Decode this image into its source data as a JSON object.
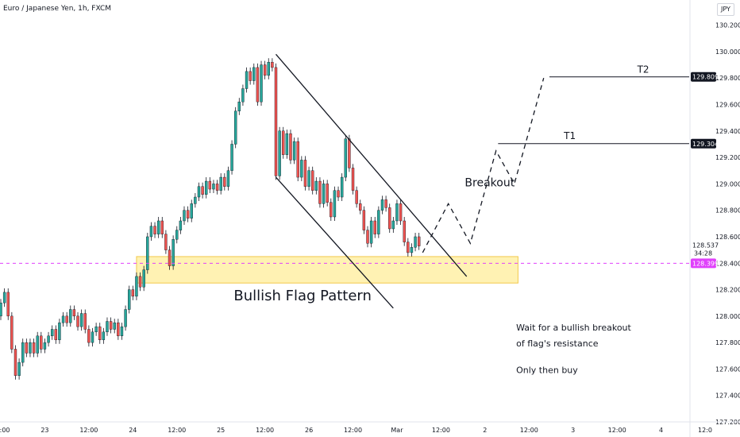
{
  "header": {
    "symbol": "Euro / Japanese Yen, 1h, FXCM",
    "currency": "JPY"
  },
  "chart_data": {
    "type": "candlestick",
    "title": "Euro / Japanese Yen, 1h, FXCM",
    "ylim": [
      127.2,
      130.3
    ],
    "y_ticks": [
      "130.200",
      "130.000",
      "129.800",
      "129.600",
      "129.400",
      "129.200",
      "129.000",
      "128.800",
      "128.600",
      "128.400",
      "128.200",
      "128.000",
      "127.800",
      "127.600",
      "127.400",
      "127.200"
    ],
    "x_ticks": [
      {
        "label": "12:00",
        "t": 0
      },
      {
        "label": "23",
        "t": 12
      },
      {
        "label": "12:00",
        "t": 24
      },
      {
        "label": "24",
        "t": 36
      },
      {
        "label": "12:00",
        "t": 48
      },
      {
        "label": "25",
        "t": 60
      },
      {
        "label": "12:00",
        "t": 72
      },
      {
        "label": "26",
        "t": 84
      },
      {
        "label": "12:00",
        "t": 96
      },
      {
        "label": "Mar",
        "t": 108
      },
      {
        "label": "12:00",
        "t": 120
      },
      {
        "label": "2",
        "t": 132
      },
      {
        "label": "12:00",
        "t": 144
      },
      {
        "label": "3",
        "t": 156
      },
      {
        "label": "12:00",
        "t": 168
      },
      {
        "label": "4",
        "t": 180
      },
      {
        "label": "12:0",
        "t": 192
      }
    ],
    "candles": [
      [
        0,
        128.0,
        128.1
      ],
      [
        1,
        128.1,
        128.18
      ],
      [
        2,
        128.18,
        128.0
      ],
      [
        3,
        128.0,
        127.75
      ],
      [
        4,
        127.75,
        127.55
      ],
      [
        5,
        127.55,
        127.65
      ],
      [
        6,
        127.65,
        127.8
      ],
      [
        7,
        127.8,
        127.72
      ],
      [
        8,
        127.72,
        127.8
      ],
      [
        9,
        127.8,
        127.72
      ],
      [
        10,
        127.72,
        127.85
      ],
      [
        11,
        127.85,
        127.75
      ],
      [
        12,
        127.75,
        127.8
      ],
      [
        13,
        127.8,
        127.85
      ],
      [
        14,
        127.85,
        127.9
      ],
      [
        15,
        127.9,
        127.82
      ],
      [
        16,
        127.82,
        127.95
      ],
      [
        17,
        127.95,
        128.0
      ],
      [
        18,
        128.0,
        127.95
      ],
      [
        19,
        127.95,
        128.05
      ],
      [
        20,
        128.05,
        128.0
      ],
      [
        21,
        128.0,
        127.92
      ],
      [
        22,
        127.92,
        128.02
      ],
      [
        23,
        128.02,
        127.9
      ],
      [
        24,
        127.9,
        127.8
      ],
      [
        25,
        127.8,
        127.88
      ],
      [
        26,
        127.88,
        127.92
      ],
      [
        27,
        127.92,
        127.82
      ],
      [
        28,
        127.82,
        127.88
      ],
      [
        29,
        127.88,
        127.96
      ],
      [
        30,
        127.96,
        127.9
      ],
      [
        31,
        127.9,
        127.95
      ],
      [
        32,
        127.95,
        127.85
      ],
      [
        33,
        127.85,
        127.92
      ],
      [
        34,
        127.92,
        128.05
      ],
      [
        35,
        128.05,
        128.2
      ],
      [
        36,
        128.2,
        128.15
      ],
      [
        37,
        128.15,
        128.3
      ],
      [
        38,
        128.3,
        128.22
      ],
      [
        39,
        128.22,
        128.35
      ],
      [
        40,
        128.35,
        128.6
      ],
      [
        41,
        128.6,
        128.68
      ],
      [
        42,
        128.68,
        128.62
      ],
      [
        43,
        128.62,
        128.72
      ],
      [
        44,
        128.72,
        128.62
      ],
      [
        45,
        128.62,
        128.5
      ],
      [
        46,
        128.5,
        128.38
      ],
      [
        47,
        128.38,
        128.58
      ],
      [
        48,
        128.58,
        128.65
      ],
      [
        49,
        128.65,
        128.72
      ],
      [
        50,
        128.72,
        128.8
      ],
      [
        51,
        128.8,
        128.74
      ],
      [
        52,
        128.74,
        128.85
      ],
      [
        53,
        128.85,
        128.9
      ],
      [
        54,
        128.9,
        128.98
      ],
      [
        55,
        128.98,
        128.92
      ],
      [
        56,
        128.92,
        129.02
      ],
      [
        57,
        129.02,
        128.96
      ],
      [
        58,
        128.96,
        129.0
      ],
      [
        59,
        129.0,
        128.95
      ],
      [
        60,
        128.95,
        129.05
      ],
      [
        61,
        129.05,
        128.98
      ],
      [
        62,
        128.98,
        129.1
      ],
      [
        63,
        129.1,
        129.3
      ],
      [
        64,
        129.3,
        129.55
      ],
      [
        65,
        129.55,
        129.62
      ],
      [
        66,
        129.62,
        129.72
      ],
      [
        67,
        129.72,
        129.85
      ],
      [
        68,
        129.85,
        129.78
      ],
      [
        69,
        129.78,
        129.88
      ],
      [
        70,
        129.88,
        129.62
      ],
      [
        71,
        129.62,
        129.9
      ],
      [
        72,
        129.9,
        129.82
      ],
      [
        73,
        129.82,
        129.92
      ],
      [
        74,
        129.92,
        129.88
      ],
      [
        75,
        129.88,
        129.06
      ],
      [
        76,
        129.06,
        129.4
      ],
      [
        77,
        129.4,
        129.22
      ],
      [
        78,
        129.22,
        129.38
      ],
      [
        79,
        129.38,
        129.18
      ],
      [
        80,
        129.18,
        129.32
      ],
      [
        81,
        129.32,
        129.05
      ],
      [
        82,
        129.05,
        129.18
      ],
      [
        83,
        129.18,
        128.98
      ],
      [
        84,
        128.98,
        129.1
      ],
      [
        85,
        129.1,
        128.95
      ],
      [
        86,
        128.95,
        129.02
      ],
      [
        87,
        129.02,
        128.85
      ],
      [
        88,
        128.85,
        129.0
      ],
      [
        89,
        129.0,
        128.86
      ],
      [
        90,
        128.86,
        128.75
      ],
      [
        91,
        128.75,
        128.95
      ],
      [
        92,
        128.95,
        128.9
      ],
      [
        93,
        128.9,
        129.05
      ],
      [
        94,
        129.05,
        129.34
      ],
      [
        95,
        129.34,
        129.12
      ],
      [
        96,
        129.12,
        128.95
      ],
      [
        97,
        128.95,
        128.85
      ],
      [
        98,
        128.85,
        128.8
      ],
      [
        99,
        128.8,
        128.65
      ],
      [
        100,
        128.65,
        128.55
      ],
      [
        101,
        128.55,
        128.72
      ],
      [
        102,
        128.72,
        128.62
      ],
      [
        103,
        128.62,
        128.8
      ],
      [
        104,
        128.8,
        128.88
      ],
      [
        105,
        128.88,
        128.82
      ],
      [
        106,
        128.82,
        128.66
      ],
      [
        107,
        128.66,
        128.72
      ],
      [
        108,
        128.72,
        128.85
      ],
      [
        109,
        128.85,
        128.72
      ],
      [
        110,
        128.72,
        128.56
      ],
      [
        111,
        128.56,
        128.48
      ],
      [
        112,
        128.48,
        128.52
      ],
      [
        113,
        128.52,
        128.6
      ],
      [
        114,
        128.6,
        128.53
      ]
    ],
    "zones": [
      {
        "label": "Bullish Flag Pattern",
        "from": 128.25,
        "to": 128.45
      }
    ],
    "lines": [
      {
        "name": "upper-flag",
        "points": [
          [
            75,
            129.98
          ],
          [
            127,
            128.3
          ]
        ]
      },
      {
        "name": "lower-flag",
        "points": [
          [
            75,
            129.05
          ],
          [
            107,
            128.06
          ]
        ]
      }
    ],
    "projection": [
      [
        115,
        128.48
      ],
      [
        122,
        128.85
      ],
      [
        128,
        128.55
      ],
      [
        135,
        129.25
      ],
      [
        140,
        129.0
      ],
      [
        148,
        129.8
      ]
    ],
    "targets": [
      {
        "label": "T1",
        "value": 129.304,
        "tag": "129.304",
        "t": 136
      },
      {
        "label": "T2",
        "value": 129.809,
        "tag": "129.809",
        "t": 150
      }
    ],
    "current_price": {
      "value": 128.537,
      "label": "128.537",
      "countdown": "34:28"
    },
    "dashed_level": {
      "value": 128.399,
      "tag": "128.399",
      "color": "#e040fb"
    },
    "annotations": {
      "breakout": "Breakout",
      "pattern": "Bullish Flag Pattern",
      "note1": "Wait for a bullish breakout",
      "note2": "of flag's resistance",
      "note3": "Only then buy"
    },
    "colors": {
      "up": "#26a69a",
      "down": "#ef5350",
      "zone": "#fff2b3",
      "zone_border": "#f2c94c"
    }
  }
}
